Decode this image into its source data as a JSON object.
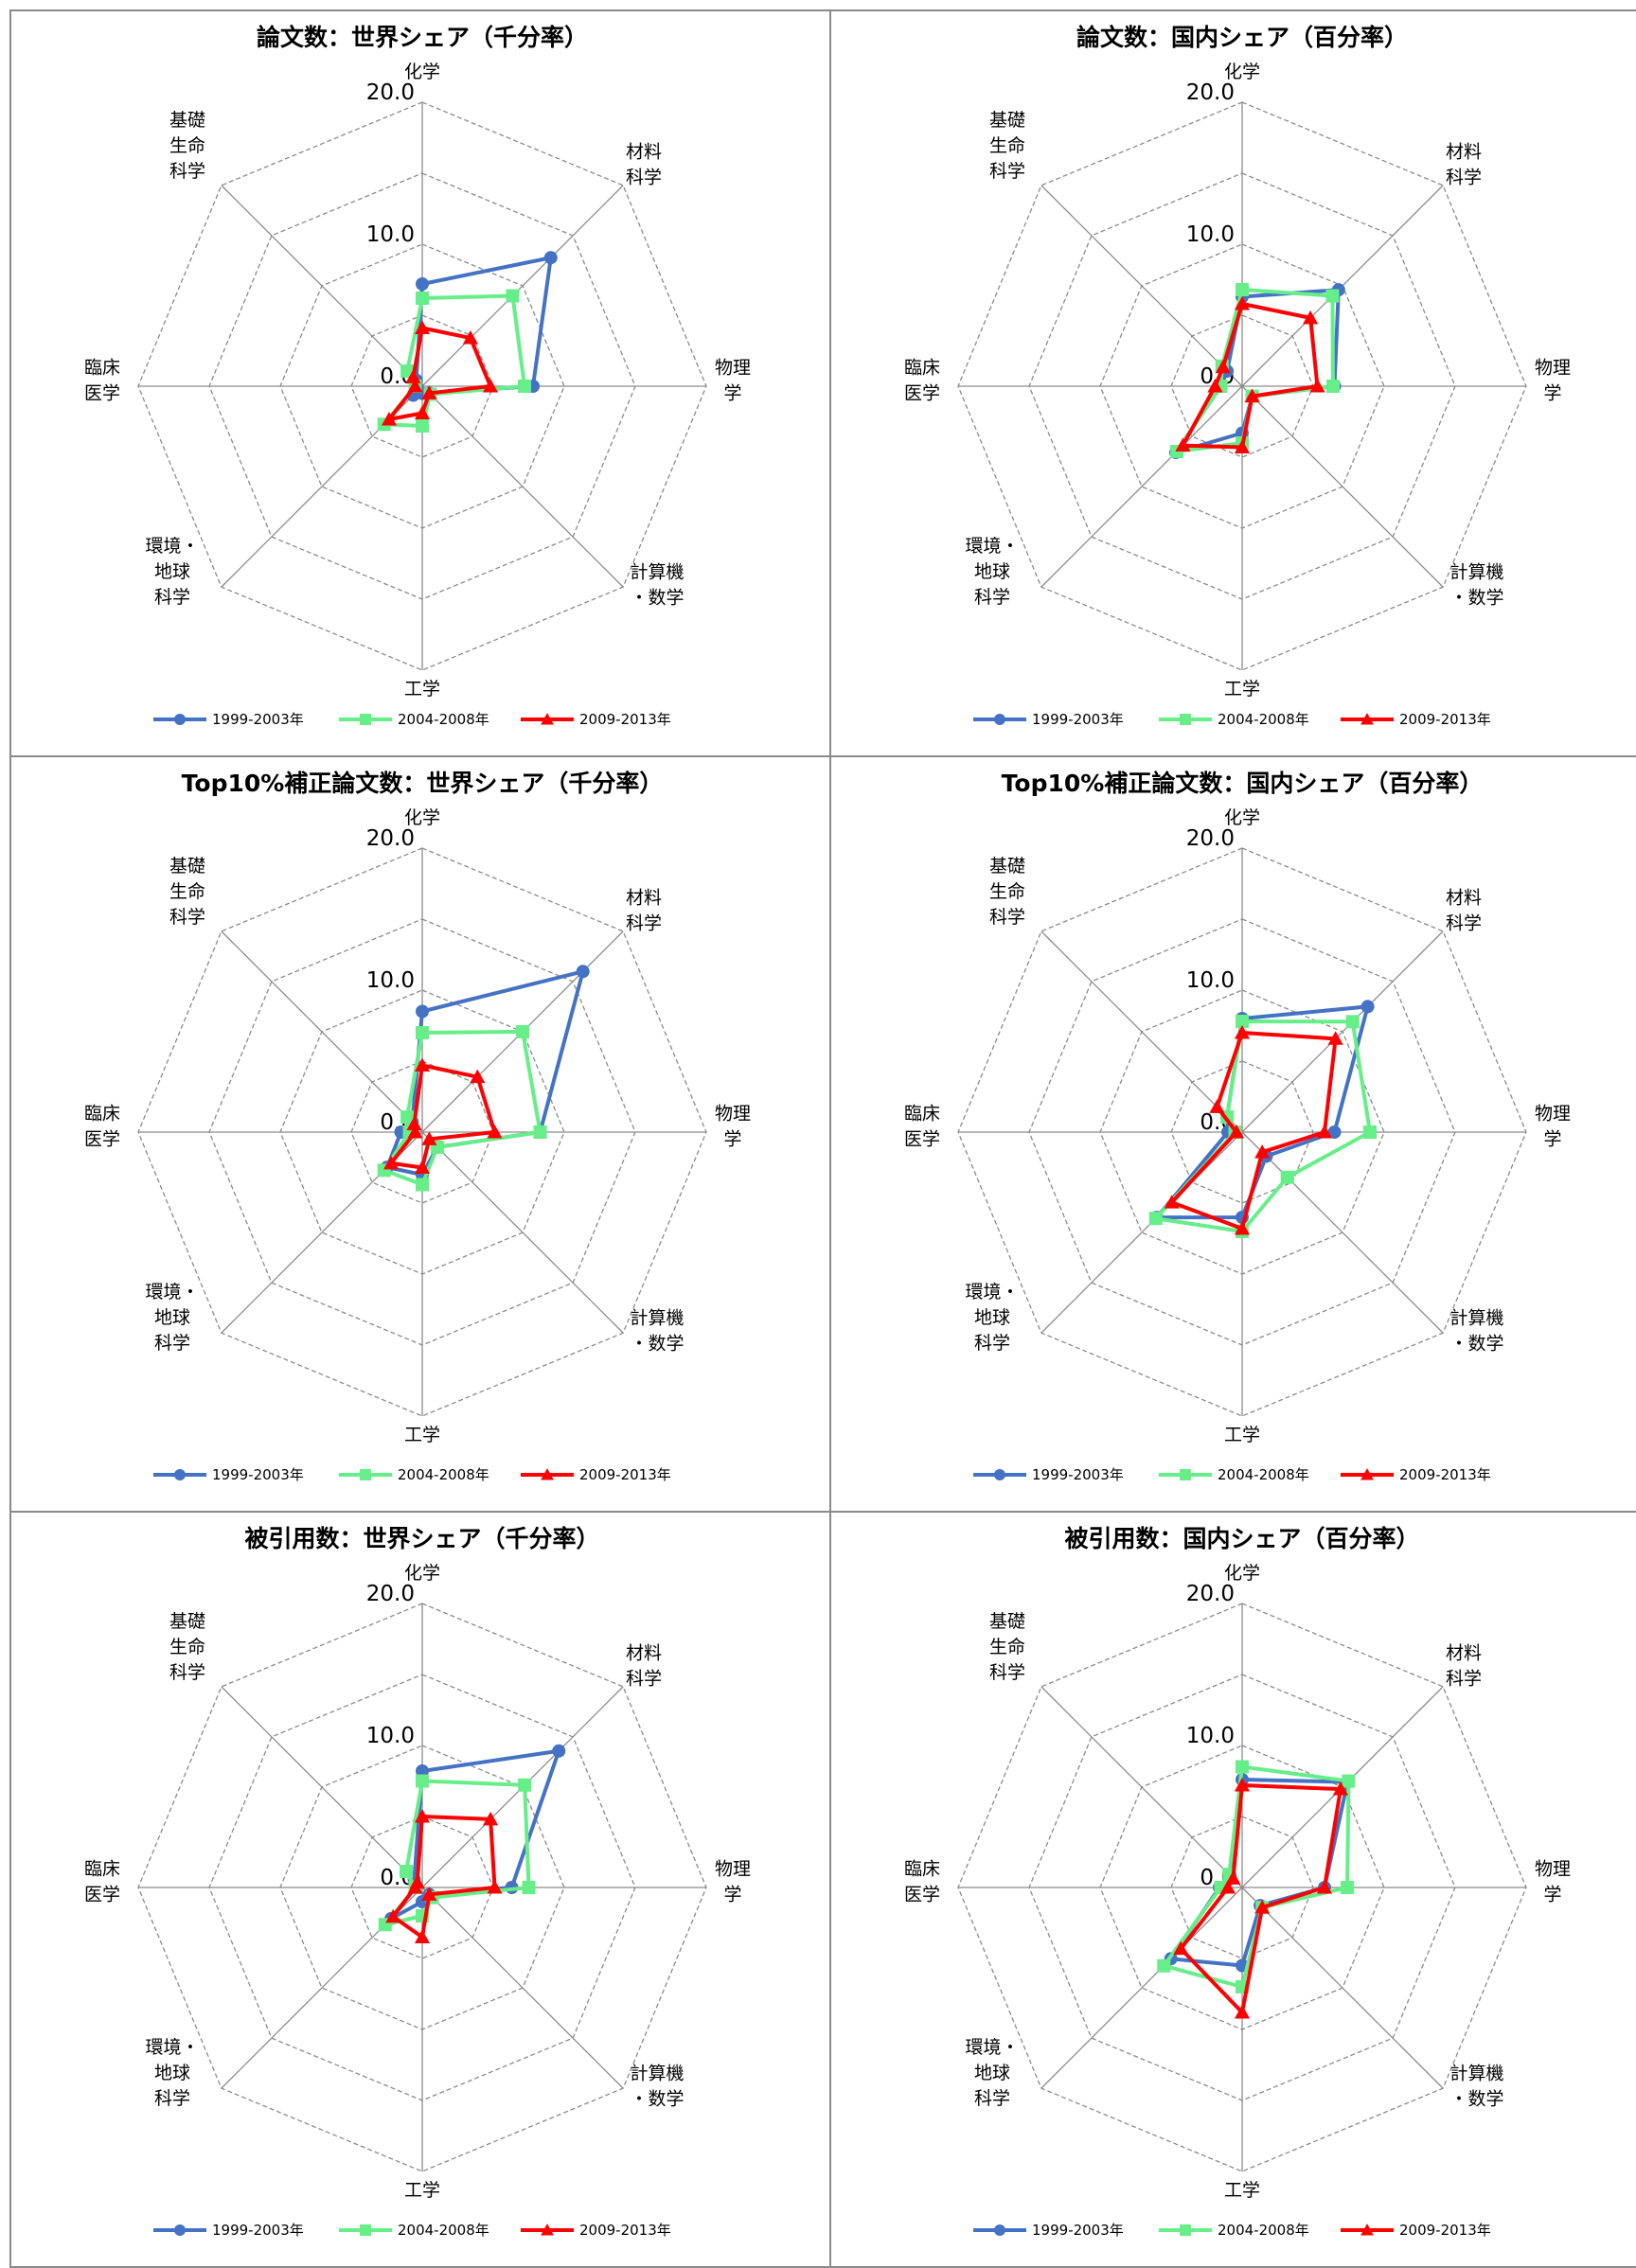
{
  "chart_data": [
    {
      "type": "radar",
      "title": "論文数：世界シェア（千分率）",
      "categories": [
        "化学",
        "材料\n科学",
        "物理\n学",
        "計算機\n・数学",
        "工学",
        "環境・\n地球\n科学",
        "臨床\n医学",
        "基礎\n生命\n科学"
      ],
      "tick_labels": [
        "0.0",
        "10.0",
        "20.0"
      ],
      "rlim": [
        0,
        20
      ],
      "grid": true,
      "legend": "bottom",
      "series": [
        {
          "name": "1999-2003年",
          "color": "#4472c4",
          "marker": "circle",
          "values": [
            7.2,
            12.8,
            7.8,
            0.7,
            0.5,
            0.9,
            0.4,
            0.6
          ]
        },
        {
          "name": "2004-2008年",
          "color": "#66ee88",
          "marker": "square",
          "values": [
            6.2,
            9.0,
            7.2,
            0.8,
            2.8,
            3.8,
            0.5,
            1.5
          ]
        },
        {
          "name": "2009-2013年",
          "color": "#ff0000",
          "marker": "triangle",
          "values": [
            4.1,
            4.8,
            4.8,
            0.7,
            1.9,
            3.3,
            0.5,
            0.9
          ]
        }
      ]
    },
    {
      "type": "radar",
      "title": "論文数：国内シェア（百分率）",
      "categories": [
        "化学",
        "材料\n科学",
        "物理\n学",
        "計算機\n・数学",
        "工学",
        "環境・\n地球\n科学",
        "臨床\n医学",
        "基礎\n生命\n科学"
      ],
      "tick_labels": [
        "0.0",
        "10.0",
        "20.0"
      ],
      "rlim": [
        0,
        20
      ],
      "grid": true,
      "legend": "bottom",
      "series": [
        {
          "name": "1999-2003年",
          "color": "#4472c4",
          "marker": "circle",
          "values": [
            6.3,
            9.6,
            6.5,
            1.0,
            3.3,
            6.6,
            1.5,
            1.5
          ]
        },
        {
          "name": "2004-2008年",
          "color": "#66ee88",
          "marker": "square",
          "values": [
            6.8,
            9.0,
            6.4,
            1.0,
            4.0,
            6.5,
            1.5,
            2.0
          ]
        },
        {
          "name": "2009-2013年",
          "color": "#ff0000",
          "marker": "triangle",
          "values": [
            5.8,
            6.8,
            5.3,
            1.0,
            4.3,
            5.9,
            1.9,
            1.9
          ]
        }
      ]
    },
    {
      "type": "radar",
      "title": "Top10%補正論文数：世界シェア（千分率）",
      "categories": [
        "化学",
        "材料\n科学",
        "物理\n学",
        "計算機\n・数学",
        "工学",
        "環境・\n地球\n科学",
        "臨床\n医学",
        "基礎\n生命\n科学"
      ],
      "tick_labels": [
        "0.0",
        "10.0",
        "20.0"
      ],
      "rlim": [
        0,
        20
      ],
      "grid": true,
      "legend": "bottom",
      "series": [
        {
          "name": "1999-2003年",
          "color": "#4472c4",
          "marker": "circle",
          "values": [
            8.5,
            16.0,
            8.3,
            1.5,
            3.0,
            3.5,
            1.5,
            1.0
          ]
        },
        {
          "name": "2004-2008年",
          "color": "#66ee88",
          "marker": "square",
          "values": [
            7.0,
            10.0,
            8.3,
            1.5,
            3.7,
            3.8,
            0.9,
            1.5
          ]
        },
        {
          "name": "2009-2013年",
          "color": "#ff0000",
          "marker": "triangle",
          "values": [
            4.7,
            5.5,
            5.1,
            0.7,
            2.5,
            3.1,
            0.5,
            0.8
          ]
        }
      ]
    },
    {
      "type": "radar",
      "title": "Top10%補正論文数：国内シェア（百分率）",
      "categories": [
        "化学",
        "材料\n科学",
        "物理\n学",
        "計算機\n・数学",
        "工学",
        "環境・\n地球\n科学",
        "臨床\n医学",
        "基礎\n生命\n科学"
      ],
      "tick_labels": [
        "0.0",
        "10.0",
        "20.0"
      ],
      "rlim": [
        0,
        20
      ],
      "grid": true,
      "legend": "bottom",
      "series": [
        {
          "name": "1999-2003年",
          "color": "#4472c4",
          "marker": "circle",
          "values": [
            8.0,
            12.5,
            6.5,
            2.4,
            6.0,
            8.5,
            1.0,
            1.5
          ]
        },
        {
          "name": "2004-2008年",
          "color": "#66ee88",
          "marker": "square",
          "values": [
            7.8,
            11.0,
            9.0,
            4.5,
            7.0,
            8.6,
            0.5,
            1.5
          ]
        },
        {
          "name": "2009-2013年",
          "color": "#ff0000",
          "marker": "triangle",
          "values": [
            7.0,
            9.3,
            5.8,
            2.0,
            6.8,
            7.0,
            0.4,
            2.5
          ]
        }
      ]
    },
    {
      "type": "radar",
      "title": "被引用数：世界シェア（千分率）",
      "categories": [
        "化学",
        "材料\n科学",
        "物理\n学",
        "計算機\n・数学",
        "工学",
        "環境・\n地球\n科学",
        "臨床\n医学",
        "基礎\n生命\n科学"
      ],
      "tick_labels": [
        "0.0",
        "10.0",
        "20.0"
      ],
      "rlim": [
        0,
        20
      ],
      "grid": true,
      "legend": "bottom",
      "series": [
        {
          "name": "1999-2003年",
          "color": "#4472c4",
          "marker": "circle",
          "values": [
            8.2,
            13.6,
            6.3,
            0.7,
            1.0,
            3.1,
            0.5,
            0.8
          ]
        },
        {
          "name": "2004-2008年",
          "color": "#66ee88",
          "marker": "square",
          "values": [
            7.5,
            10.2,
            7.5,
            1.0,
            2.0,
            3.7,
            0.5,
            1.6
          ]
        },
        {
          "name": "2009-2013年",
          "color": "#ff0000",
          "marker": "triangle",
          "values": [
            5.0,
            6.8,
            5.1,
            0.7,
            3.5,
            2.9,
            0.5,
            0.5
          ]
        }
      ]
    },
    {
      "type": "radar",
      "title": "被引用数：国内シェア（百分率）",
      "categories": [
        "化学",
        "材料\n科学",
        "物理\n学",
        "計算機\n・数学",
        "工学",
        "環境・\n地球\n科学",
        "臨床\n医学",
        "基礎\n生命\n科学"
      ],
      "tick_labels": [
        "0.0",
        "10.0",
        "20.0"
      ],
      "rlim": [
        0,
        20
      ],
      "grid": true,
      "legend": "bottom",
      "series": [
        {
          "name": "1999-2003年",
          "color": "#4472c4",
          "marker": "circle",
          "values": [
            7.6,
            10.5,
            5.8,
            1.8,
            5.5,
            7.1,
            1.6,
            1.2
          ]
        },
        {
          "name": "2004-2008年",
          "color": "#66ee88",
          "marker": "square",
          "values": [
            8.5,
            10.6,
            7.4,
            2.0,
            7.0,
            7.8,
            1.5,
            1.3
          ]
        },
        {
          "name": "2009-2013年",
          "color": "#ff0000",
          "marker": "triangle",
          "values": [
            7.2,
            9.8,
            5.8,
            2.0,
            8.8,
            6.1,
            1.0,
            0.9
          ]
        }
      ]
    }
  ]
}
